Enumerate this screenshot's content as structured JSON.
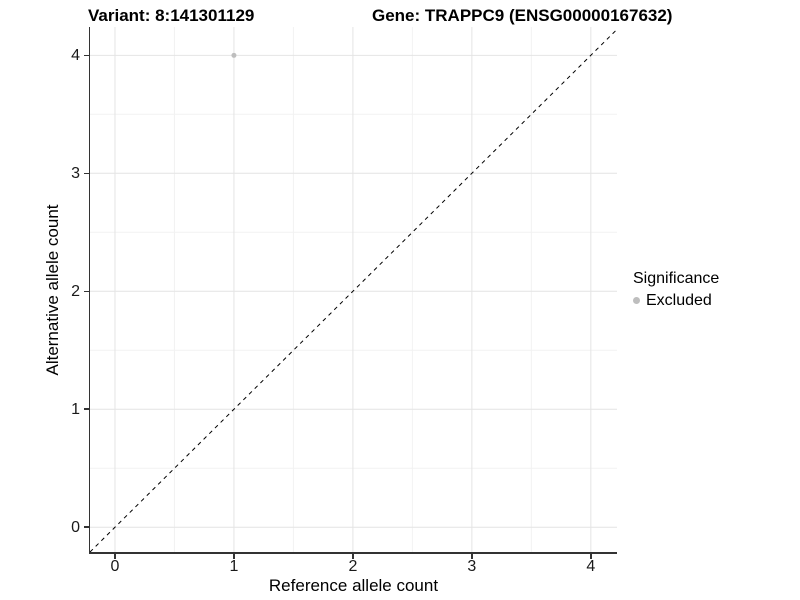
{
  "header": {
    "variant_title": "Variant: 8:141301129",
    "gene_title": "Gene: TRAPPC9 (ENSG00000167632)"
  },
  "chart_data": {
    "type": "scatter",
    "titles": {
      "left": "Variant: 8:141301129",
      "right": "Gene: TRAPPC9 (ENSG00000167632)"
    },
    "xlabel": "Reference allele count",
    "ylabel": "Alternative allele count",
    "xlim": [
      -0.21,
      4.22
    ],
    "ylim": [
      -0.21,
      4.24
    ],
    "x_ticks": [
      0,
      1,
      2,
      3,
      4
    ],
    "y_ticks": [
      0,
      1,
      2,
      3,
      4
    ],
    "x_minor_ticks": [
      0.5,
      1.5,
      2.5,
      3.5
    ],
    "y_minor_ticks": [
      0.5,
      1.5,
      2.5,
      3.5
    ],
    "grid": "major and minor, light gray on white",
    "series": [
      {
        "name": "Excluded",
        "color": "#bebebe",
        "points": [
          {
            "x": 1,
            "y": 4
          }
        ]
      }
    ],
    "identity_line": {
      "slope": 1,
      "intercept": 0,
      "style": "dashed",
      "color": "#000000"
    },
    "legend": {
      "title": "Significance",
      "position": "right",
      "entries": [
        {
          "label": "Excluded",
          "color": "#bebebe",
          "marker": "dot"
        }
      ]
    }
  },
  "colors": {
    "background": "#ffffff",
    "axis": "#333333",
    "grid_major": "#e4e4e4",
    "grid_minor": "#f2f2f2",
    "point": "#bebebe",
    "text": "#000000"
  }
}
